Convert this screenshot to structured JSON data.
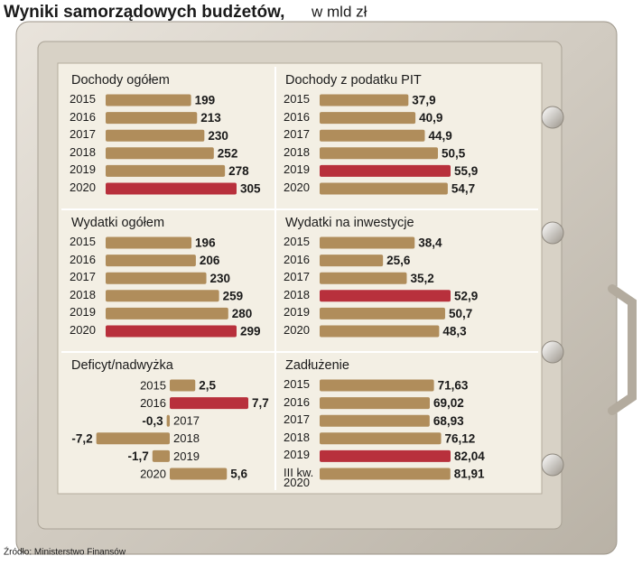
{
  "title": "Wyniki samorządowych budżetów,",
  "subtitle": "w mld zł",
  "source": "Źródło: Ministerstwo Finansów",
  "chart_data": [
    {
      "type": "bar",
      "orientation": "horizontal",
      "title": "Dochody ogółem",
      "categories": [
        "2015",
        "2016",
        "2017",
        "2018",
        "2019",
        "2020"
      ],
      "values": [
        199,
        213,
        230,
        252,
        278,
        305
      ],
      "colors": [
        "#b08d5b",
        "#b08d5b",
        "#b08d5b",
        "#b08d5b",
        "#b08d5b",
        "#b8303c"
      ]
    },
    {
      "type": "bar",
      "orientation": "horizontal",
      "title": "Dochody z podatku PIT",
      "categories": [
        "2015",
        "2016",
        "2017",
        "2018",
        "2019",
        "2020"
      ],
      "values": [
        37.9,
        40.9,
        44.9,
        50.5,
        55.9,
        54.7
      ],
      "value_labels": [
        "37,9",
        "40,9",
        "44,9",
        "50,5",
        "55,9",
        "54,7"
      ],
      "colors": [
        "#b08d5b",
        "#b08d5b",
        "#b08d5b",
        "#b08d5b",
        "#b8303c",
        "#b08d5b"
      ]
    },
    {
      "type": "bar",
      "orientation": "horizontal",
      "title": "Wydatki ogółem",
      "categories": [
        "2015",
        "2016",
        "2017",
        "2018",
        "2019",
        "2020"
      ],
      "values": [
        196,
        206,
        230,
        259,
        280,
        299
      ],
      "colors": [
        "#b08d5b",
        "#b08d5b",
        "#b08d5b",
        "#b08d5b",
        "#b08d5b",
        "#b8303c"
      ]
    },
    {
      "type": "bar",
      "orientation": "horizontal",
      "title": "Wydatki na inwestycje",
      "categories": [
        "2015",
        "2016",
        "2017",
        "2018",
        "2019",
        "2020"
      ],
      "values": [
        38.4,
        25.6,
        35.2,
        52.9,
        50.7,
        48.3
      ],
      "value_labels": [
        "38,4",
        "25,6",
        "35,2",
        "52,9",
        "50,7",
        "48,3"
      ],
      "colors": [
        "#b08d5b",
        "#b08d5b",
        "#b08d5b",
        "#b8303c",
        "#b08d5b",
        "#b08d5b"
      ]
    },
    {
      "type": "diverging",
      "orientation": "horizontal",
      "title": "Deficyt/nadwyżka",
      "categories": [
        "2015",
        "2016",
        "2017",
        "2018",
        "2019",
        "2020"
      ],
      "values": [
        2.5,
        7.7,
        -0.3,
        -7.2,
        -1.7,
        5.6
      ],
      "value_labels": [
        "2,5",
        "7,7",
        "-0,3",
        "-7,2",
        "-1,7",
        "5,6"
      ],
      "colors": [
        "#b08d5b",
        "#b8303c",
        "#b08d5b",
        "#b08d5b",
        "#b08d5b",
        "#b08d5b"
      ]
    },
    {
      "type": "bar",
      "orientation": "horizontal",
      "title": "Zadłużenie",
      "categories": [
        "2015",
        "2016",
        "2017",
        "2018",
        "2019",
        "III kw. 2020"
      ],
      "values": [
        71.63,
        69.02,
        68.93,
        76.12,
        82.04,
        81.91
      ],
      "value_labels": [
        "71,63",
        "69,02",
        "68,93",
        "76,12",
        "82,04",
        "81,91"
      ],
      "colors": [
        "#b08d5b",
        "#b08d5b",
        "#b08d5b",
        "#b08d5b",
        "#b8303c",
        "#b08d5b"
      ]
    }
  ]
}
